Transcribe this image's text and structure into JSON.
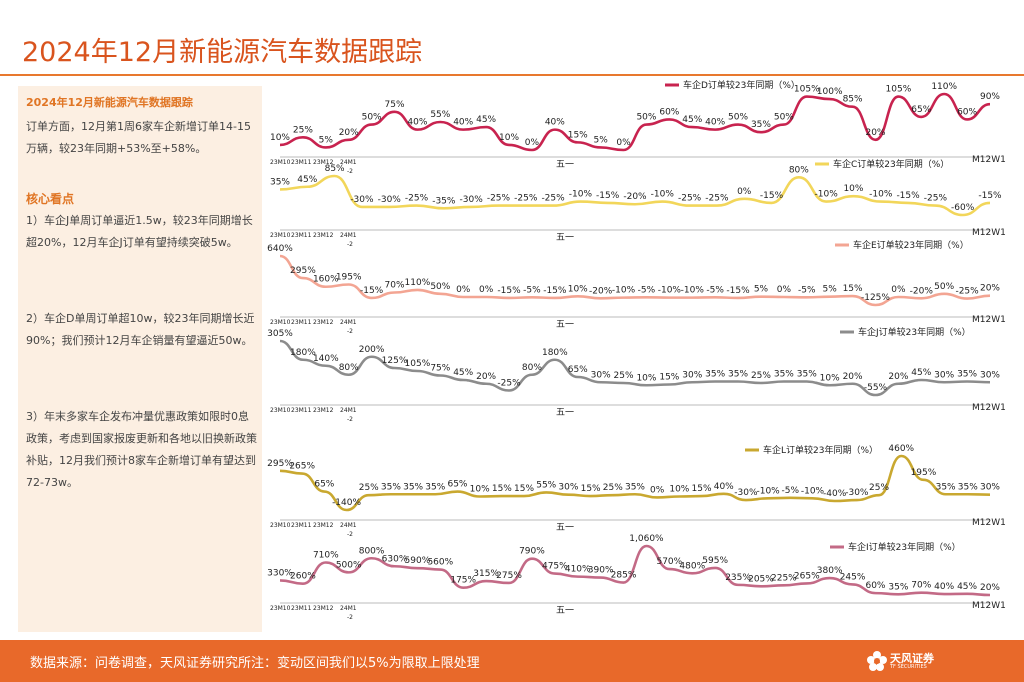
{
  "title": "2024年12月新能源汽车数据跟踪",
  "sidebar": {
    "heading": "2024年12月新能源汽车数据跟踪",
    "intro": "订单方面，12月第1周6家车企新增订单14-15万辆，较23年同期+53%至+58%。",
    "key_title": "核心看点",
    "point1": "1）车企J单周订单逼近1.5w，较23年同期增长超20%，12月车企J订单有望持续突破5w。",
    "point2": "2）车企D单周订单超10w，较23年同期增长近90%；我们预计12月车企销量有望逼近50w。",
    "point3": "3）年末多家车企发布冲量优惠政策如限时0息政策，考虑到国家报废更新和各地以旧换新政策补贴，12月我们预计8家车企新增订单有望达到72-73w。"
  },
  "footer": {
    "source": "数据来源：问卷调查，天风证券研究所注：变动区间我们以5%为限取上限处理",
    "logo_name": "天风证券",
    "logo_sub": "TF SECURITIES"
  },
  "chart_data": [
    {
      "type": "line",
      "legend": "车企D订单较23年同期（%）",
      "color": "#c8234f",
      "x_ticks": [
        "23M10",
        "23M11",
        "23M12",
        "24M1",
        "-2",
        "五一",
        "M12W1"
      ],
      "labels": [
        "10%",
        "25%",
        "5%",
        "20%",
        "50%",
        "75%",
        "40%",
        "55%",
        "40%",
        "45%",
        "10%",
        "0%",
        "40%",
        "15%",
        "5%",
        "0%",
        "50%",
        "60%",
        "45%",
        "40%",
        "50%",
        "35%",
        "50%",
        "105%",
        "100%",
        "85%",
        "20%",
        "105%",
        "65%",
        "110%",
        "60%",
        "90%"
      ],
      "values": [
        10,
        25,
        5,
        20,
        50,
        75,
        40,
        55,
        40,
        45,
        10,
        0,
        40,
        15,
        5,
        0,
        50,
        60,
        45,
        40,
        50,
        35,
        50,
        105,
        100,
        85,
        20,
        105,
        65,
        110,
        60,
        90
      ]
    },
    {
      "type": "line",
      "legend": "车企C订单较23年同期（%）",
      "color": "#f2d65a",
      "x_ticks": [
        "23M10",
        "23M11",
        "23M12",
        "24M1",
        "-2",
        "五一",
        "M12W1"
      ],
      "labels": [
        "35%",
        "45%",
        "85%",
        "-30%",
        "-30%",
        "-25%",
        "-35%",
        "-30%",
        "-25%",
        "-25%",
        "-25%",
        "-10%",
        "-15%",
        "-20%",
        "-10%",
        "-25%",
        "-25%",
        "0%",
        "-15%",
        "80%",
        "-10%",
        "10%",
        "-10%",
        "-15%",
        "-25%",
        "-60%",
        "-15%"
      ],
      "values": [
        35,
        45,
        85,
        -30,
        -30,
        -25,
        -35,
        -30,
        -25,
        -25,
        -25,
        -10,
        -15,
        -20,
        -10,
        -25,
        -25,
        0,
        -15,
        80,
        -10,
        10,
        -10,
        -15,
        -25,
        -60,
        -15
      ]
    },
    {
      "type": "line",
      "legend": "车企E订单较23年同期（%）",
      "color": "#f3a593",
      "x_ticks": [
        "23M10",
        "23M11",
        "23M12",
        "24M1",
        "-2",
        "五一",
        "M12W1"
      ],
      "labels": [
        "640%",
        "295%",
        "160%",
        "195%",
        "-15%",
        "70%",
        "110%",
        "50%",
        "0%",
        "0%",
        "-15%",
        "-5%",
        "-15%",
        "10%",
        "-20%",
        "-10%",
        "-5%",
        "-10%",
        "-10%",
        "-5%",
        "-15%",
        "5%",
        "0%",
        "-5%",
        "5%",
        "15%",
        "-125%",
        "0%",
        "-20%",
        "50%",
        "-25%",
        "20%"
      ],
      "values": [
        640,
        295,
        160,
        195,
        -15,
        70,
        110,
        50,
        0,
        0,
        -15,
        -5,
        -15,
        10,
        -20,
        -10,
        -5,
        -10,
        -10,
        -5,
        -15,
        5,
        0,
        -5,
        5,
        15,
        -125,
        0,
        -20,
        50,
        -25,
        20
      ]
    },
    {
      "type": "line",
      "legend": "车企J订单较23年同期（%）",
      "color": "#8c8c8c",
      "x_ticks": [
        "23M10",
        "23M11",
        "23M12",
        "24M1",
        "-2",
        "五一",
        "M12W1"
      ],
      "labels": [
        "305%",
        "180%",
        "140%",
        "80%",
        "200%",
        "125%",
        "105%",
        "75%",
        "45%",
        "20%",
        "-25%",
        "80%",
        "180%",
        "65%",
        "30%",
        "25%",
        "10%",
        "15%",
        "30%",
        "35%",
        "35%",
        "25%",
        "35%",
        "35%",
        "10%",
        "20%",
        "-55%",
        "20%",
        "45%",
        "30%",
        "35%",
        "30%"
      ],
      "values": [
        305,
        180,
        140,
        80,
        200,
        125,
        105,
        75,
        45,
        20,
        -25,
        80,
        180,
        65,
        30,
        25,
        10,
        15,
        30,
        35,
        35,
        25,
        35,
        35,
        10,
        20,
        -55,
        20,
        45,
        30,
        35,
        30
      ]
    },
    {
      "type": "line",
      "legend": "车企L订单较23年同期（%）",
      "color": "#c9a830",
      "x_ticks": [
        "23M10",
        "23M11",
        "23M12",
        "24M1",
        "-2",
        "五一",
        "M12W1"
      ],
      "labels": [
        "295%",
        "265%",
        "65%",
        "-140%",
        "25%",
        "35%",
        "35%",
        "35%",
        "65%",
        "10%",
        "15%",
        "15%",
        "55%",
        "30%",
        "15%",
        "25%",
        "35%",
        "0%",
        "10%",
        "15%",
        "40%",
        "-30%",
        "-10%",
        "-5%",
        "-10%",
        "-40%",
        "-30%",
        "25%",
        "460%",
        "195%",
        "35%",
        "35%",
        "30%"
      ],
      "values": [
        295,
        265,
        65,
        -140,
        25,
        35,
        35,
        35,
        65,
        10,
        15,
        15,
        55,
        30,
        15,
        25,
        35,
        0,
        10,
        15,
        40,
        -30,
        -10,
        -5,
        -10,
        -40,
        -30,
        25,
        460,
        195,
        35,
        35,
        30
      ]
    },
    {
      "type": "line",
      "legend": "车企I订单较23年同期（%）",
      "color": "#c36a86",
      "x_ticks": [
        "23M10",
        "23M11",
        "23M12",
        "24M1",
        "-2",
        "五一",
        "M12W1"
      ],
      "labels": [
        "330%",
        "260%",
        "710%",
        "500%",
        "800%",
        "630%",
        "590%",
        "560%",
        "175%",
        "315%",
        "275%",
        "790%",
        "475%",
        "410%",
        "390%",
        "285%",
        "1,060%",
        "570%",
        "480%",
        "595%",
        "235%",
        "205%",
        "225%",
        "265%",
        "380%",
        "245%",
        "60%",
        "35%",
        "70%",
        "40%",
        "45%",
        "20%"
      ],
      "values": [
        330,
        260,
        710,
        500,
        800,
        630,
        590,
        560,
        175,
        315,
        275,
        790,
        475,
        410,
        390,
        285,
        1060,
        570,
        480,
        595,
        235,
        205,
        225,
        265,
        380,
        245,
        60,
        35,
        70,
        40,
        45,
        20
      ]
    }
  ]
}
